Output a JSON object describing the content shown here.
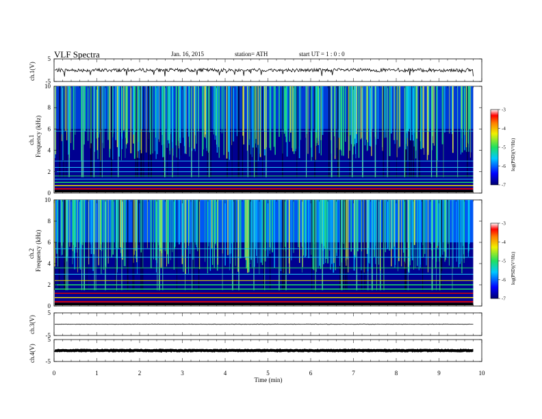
{
  "header": {
    "title": "VLF  Spectra",
    "date": "Jan. 16, 2015",
    "station": "station= ATH",
    "start_ut": "start  UT  =   1  : 0  : 0"
  },
  "colors": {
    "spectrogram_base": "#000090",
    "line_red": "#e00000",
    "line_green": "#20e060",
    "line_yellow": "#f0e000",
    "line_cyan": "#20c8ff",
    "trace": "#000000"
  },
  "chart_data": [
    {
      "type": "line",
      "panel": "ch.1",
      "ylabel": "ch.1(V)",
      "ylim": [
        -5,
        5
      ],
      "yticks": [
        "5",
        "-5"
      ],
      "series": [
        {
          "name": "ch.1",
          "baseline": 0,
          "amplitude": 0.8
        }
      ]
    },
    {
      "type": "heatmap",
      "panel": "ch.1",
      "ylabel": "ch.1\nFrequency (kHz)",
      "ylim": [
        0,
        10
      ],
      "yticks": [
        "0",
        "2",
        "4",
        "6",
        "8",
        "10"
      ],
      "colorbar": {
        "label": "log(PSD)(V²/Hz)",
        "ticks": [
          "-3",
          "-4",
          "-5",
          "-6",
          "-7"
        ],
        "range": [
          -7,
          -3
        ]
      }
    },
    {
      "type": "heatmap",
      "panel": "ch.2",
      "ylabel": "ch.2\nFrequency (kHz)",
      "ylim": [
        0,
        10
      ],
      "yticks": [
        "0",
        "2",
        "4",
        "6",
        "8",
        "10"
      ],
      "colorbar": {
        "label": "log(PSD)(V²/Hz)",
        "ticks": [
          "-3",
          "-4",
          "-5",
          "-6",
          "-7"
        ],
        "range": [
          -7,
          -3
        ]
      }
    },
    {
      "type": "line",
      "panel": "ch.3",
      "ylabel": "ch.3(V)",
      "ylim": [
        -5,
        5
      ],
      "yticks": [
        "5",
        "-5"
      ],
      "series": [
        {
          "name": "ch.3",
          "baseline": 0,
          "amplitude": 0.1
        }
      ]
    },
    {
      "type": "line",
      "panel": "ch.4",
      "ylabel": "ch.4(V)",
      "ylim": [
        -5,
        5
      ],
      "yticks": [
        "5",
        "-5"
      ],
      "series": [
        {
          "name": "ch.4",
          "baseline": 0,
          "amplitude": 0.15
        }
      ]
    }
  ],
  "x_axis": {
    "label": "Time  (min)",
    "xlim": [
      0,
      10
    ],
    "ticks": [
      "0",
      "1",
      "2",
      "3",
      "4",
      "5",
      "6",
      "7",
      "8",
      "9",
      "10"
    ],
    "data_end": 9.8
  }
}
